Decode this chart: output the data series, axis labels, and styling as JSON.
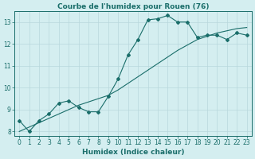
{
  "title": "Courbe de l'humidex pour Rouen (76)",
  "xlabel": "Humidex (Indice chaleur)",
  "ylabel": "",
  "bg_color": "#d4eef0",
  "grid_color": "#b8d8dc",
  "line_color": "#1a6e6a",
  "x_data": [
    0,
    1,
    2,
    3,
    4,
    5,
    6,
    7,
    8,
    9,
    10,
    11,
    12,
    13,
    14,
    15,
    16,
    17,
    18,
    19,
    20,
    21,
    22,
    23
  ],
  "y_curve": [
    8.5,
    8.0,
    8.5,
    8.8,
    9.3,
    9.4,
    9.1,
    8.9,
    8.9,
    9.6,
    10.4,
    11.5,
    12.2,
    13.1,
    13.15,
    13.3,
    13.0,
    13.0,
    12.3,
    12.4,
    12.4,
    12.2,
    12.5,
    12.4
  ],
  "y_linear": [
    8.0,
    8.2,
    8.4,
    8.6,
    8.8,
    9.0,
    9.2,
    9.35,
    9.5,
    9.65,
    9.9,
    10.2,
    10.5,
    10.8,
    11.1,
    11.4,
    11.7,
    11.95,
    12.2,
    12.35,
    12.5,
    12.6,
    12.7,
    12.75
  ],
  "ylim": [
    7.8,
    13.5
  ],
  "xlim": [
    -0.5,
    23.5
  ],
  "yticks": [
    8,
    9,
    10,
    11,
    12,
    13
  ],
  "xticks": [
    0,
    1,
    2,
    3,
    4,
    5,
    6,
    7,
    8,
    9,
    10,
    11,
    12,
    13,
    14,
    15,
    16,
    17,
    18,
    19,
    20,
    21,
    22,
    23
  ],
  "title_fontsize": 6.5,
  "label_fontsize": 6.5,
  "tick_fontsize": 5.5
}
